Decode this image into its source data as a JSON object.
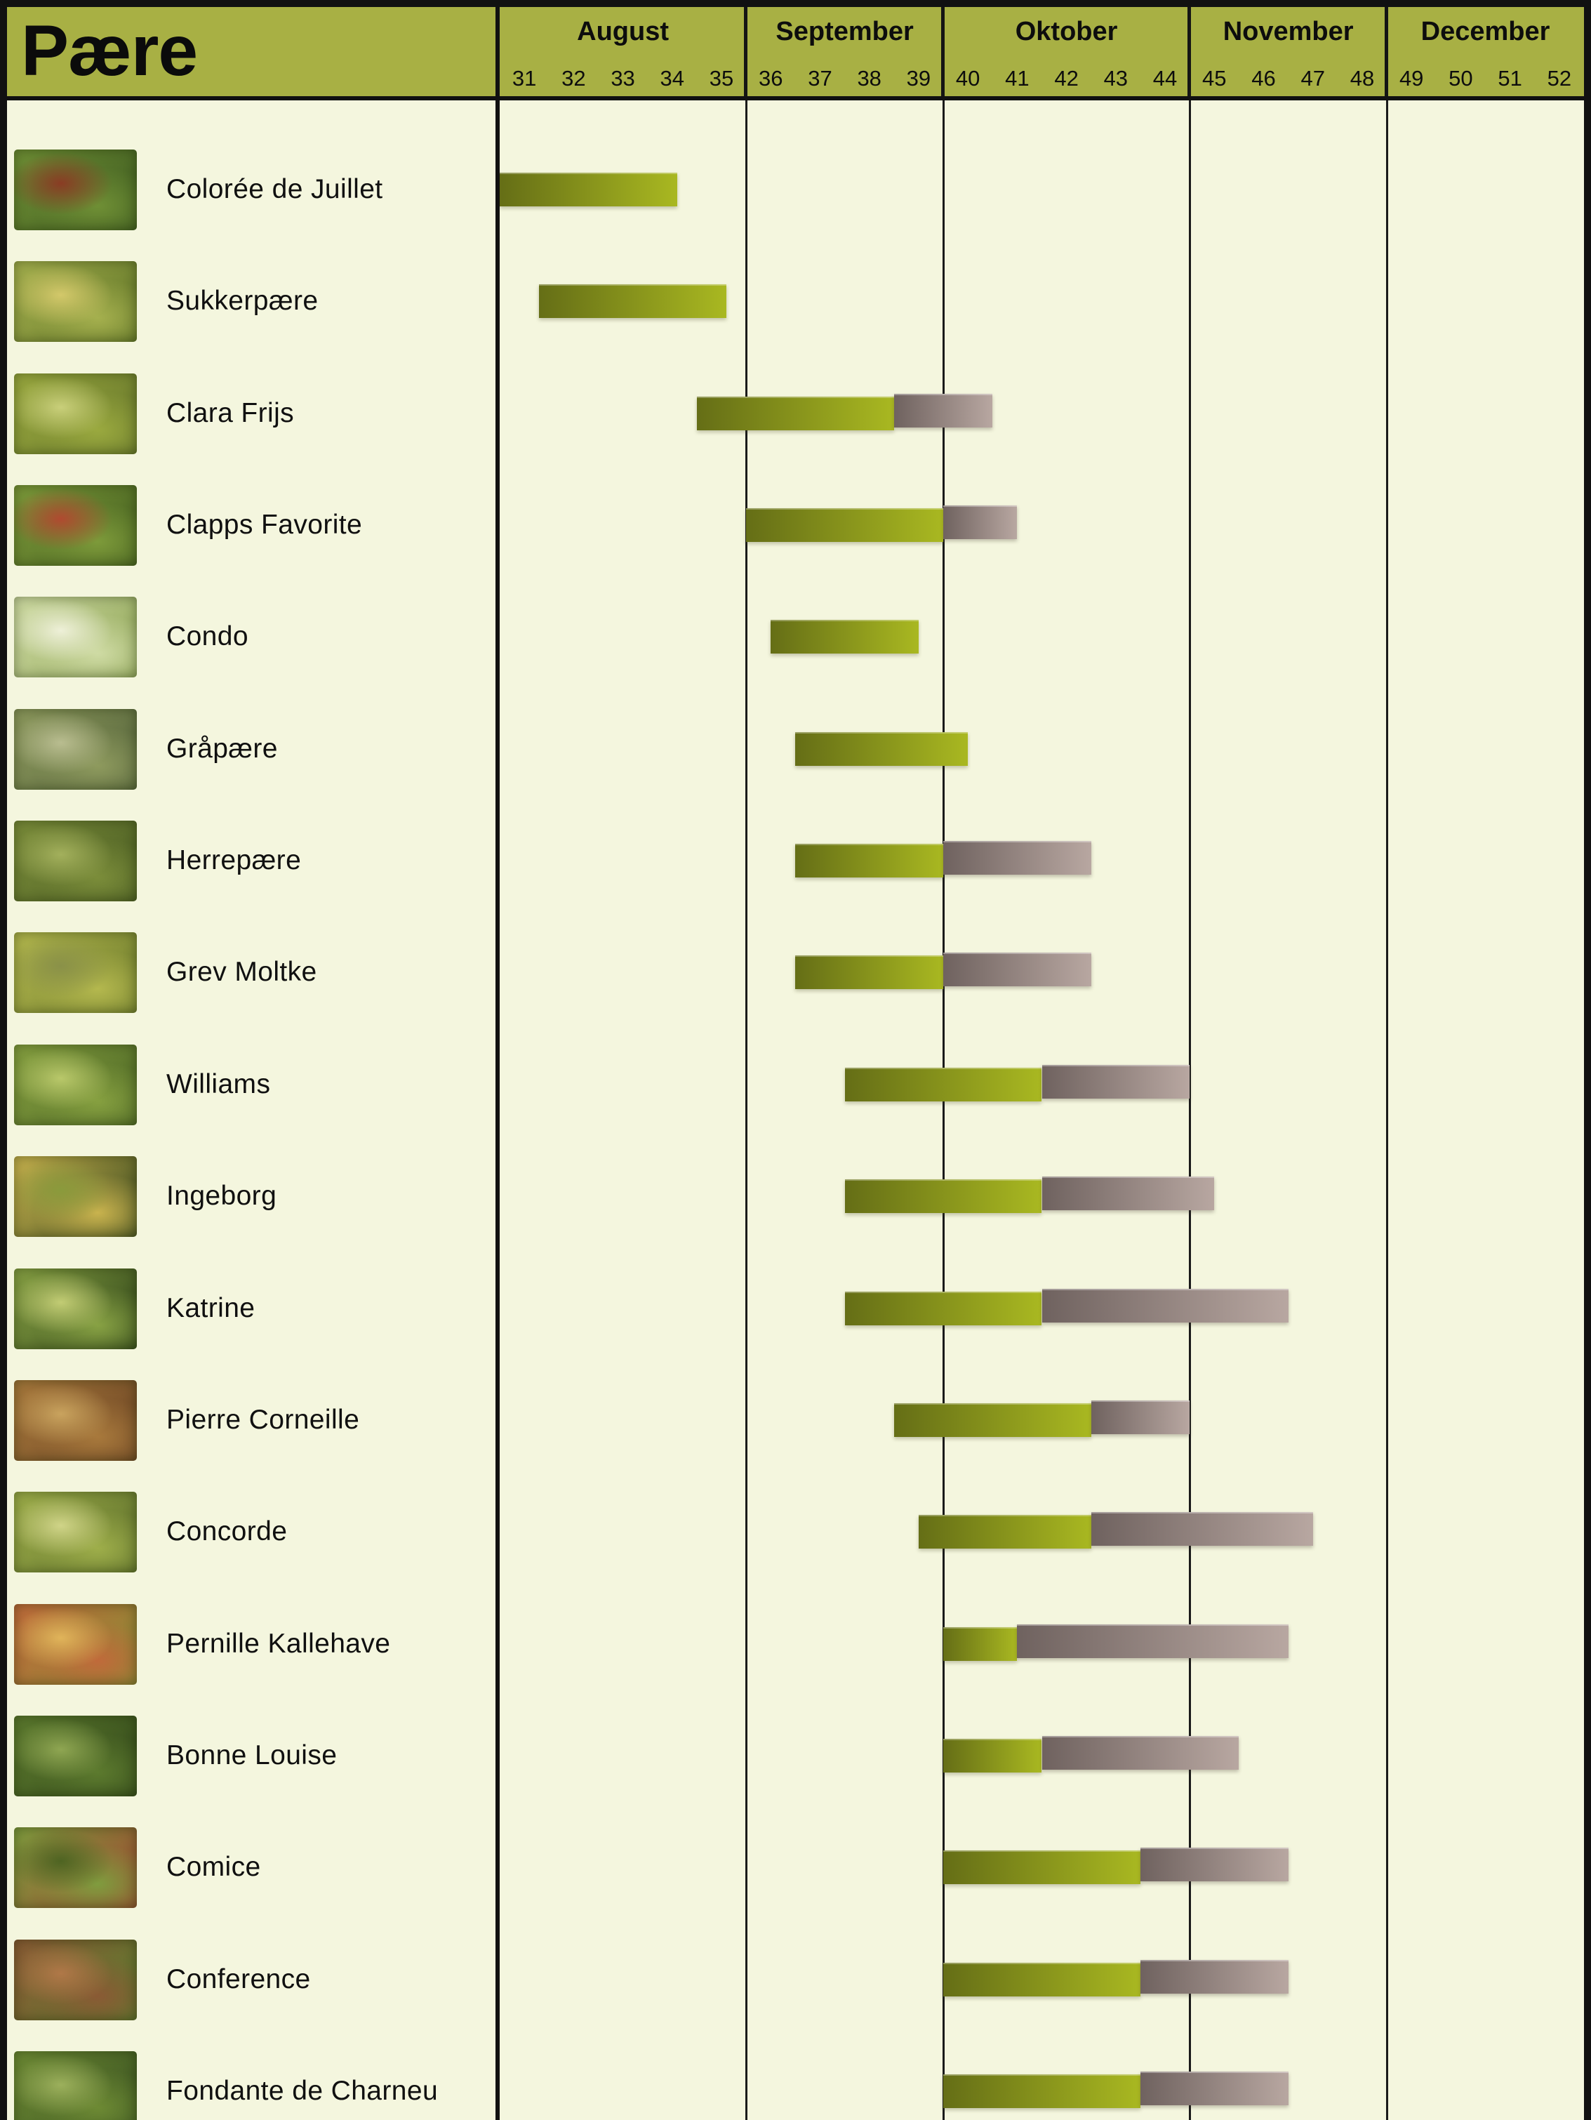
{
  "header": {
    "title": "Pære",
    "months": [
      {
        "label": "August",
        "weeks": [
          31,
          32,
          33,
          34,
          35
        ]
      },
      {
        "label": "September",
        "weeks": [
          36,
          37,
          38,
          39
        ]
      },
      {
        "label": "Oktober",
        "weeks": [
          40,
          41,
          42,
          43,
          44
        ]
      },
      {
        "label": "November",
        "weeks": [
          45,
          46,
          47,
          48
        ]
      },
      {
        "label": "December",
        "weeks": [
          49,
          50,
          51,
          52
        ]
      }
    ]
  },
  "colors": {
    "header_bg": "#a8b044",
    "body_bg": "#f4f6de",
    "border_black": "#111111",
    "harvest_gradient_start": "#656e16",
    "harvest_gradient_end": "#a9b821",
    "storage_gradient_start": "#6f625f",
    "storage_gradient_end": "#b8a7a1"
  },
  "chart_data": {
    "type": "gantt",
    "title": "Pære",
    "x_unit": "week-of-year",
    "x_range": [
      31,
      53
    ],
    "grid_weeks": [
      36,
      40,
      45,
      49
    ],
    "legend": null,
    "series_meaning": {
      "harvest": "green gradient bar",
      "storage": "gray gradient bar"
    },
    "rows": [
      {
        "name": "Colorée de Juillet",
        "harvest": [
          31.0,
          34.6
        ],
        "storage": null,
        "thumb_colors": [
          "#6f8f35",
          "#3f5c20",
          "#8a3c24"
        ]
      },
      {
        "name": "Sukkerpære",
        "harvest": [
          31.8,
          35.6
        ],
        "storage": null,
        "thumb_colors": [
          "#a5b04e",
          "#5f7426",
          "#d3c86a"
        ]
      },
      {
        "name": "Clara Frijs",
        "harvest": [
          35.0,
          39.0
        ],
        "storage": [
          39.0,
          41.0
        ],
        "thumb_colors": [
          "#9aa93f",
          "#66762a",
          "#c9cf7a"
        ]
      },
      {
        "name": "Clapps Favorite",
        "harvest": [
          36.0,
          40.0
        ],
        "storage": [
          40.0,
          41.5
        ],
        "thumb_colors": [
          "#7d9a3a",
          "#45601f",
          "#b04a30"
        ]
      },
      {
        "name": "Condo",
        "harvest": [
          36.5,
          39.5
        ],
        "storage": null,
        "thumb_colors": [
          "#cfdba4",
          "#8fa556",
          "#eef0d8"
        ]
      },
      {
        "name": "Gråpære",
        "harvest": [
          37.0,
          40.5
        ],
        "storage": null,
        "thumb_colors": [
          "#8e9a5e",
          "#55643a",
          "#b9bd90"
        ]
      },
      {
        "name": "Herrepære",
        "harvest": [
          37.0,
          40.0
        ],
        "storage": [
          40.0,
          43.0
        ],
        "thumb_colors": [
          "#7b8d3a",
          "#4a5c22",
          "#a3b05c"
        ]
      },
      {
        "name": "Grev Moltke",
        "harvest": [
          37.0,
          40.0
        ],
        "storage": [
          40.0,
          43.0
        ],
        "thumb_colors": [
          "#b4b84e",
          "#6e7c2c",
          "#8a9148"
        ]
      },
      {
        "name": "Williams",
        "harvest": [
          38.0,
          42.0
        ],
        "storage": [
          42.0,
          45.0
        ],
        "thumb_colors": [
          "#86a040",
          "#4c6624",
          "#b9c86a"
        ]
      },
      {
        "name": "Ingeborg",
        "harvest": [
          38.0,
          42.0
        ],
        "storage": [
          42.0,
          45.5
        ],
        "thumb_colors": [
          "#c9b34e",
          "#3c4a1e",
          "#8a9a3c"
        ]
      },
      {
        "name": "Katrine",
        "harvest": [
          38.0,
          42.0
        ],
        "storage": [
          42.0,
          47.0
        ],
        "thumb_colors": [
          "#88a244",
          "#2f4418",
          "#c2cc74"
        ]
      },
      {
        "name": "Pierre Corneille",
        "harvest": [
          39.0,
          43.0
        ],
        "storage": [
          43.0,
          45.0
        ],
        "thumb_colors": [
          "#a8793c",
          "#6b4423",
          "#c9a35e"
        ]
      },
      {
        "name": "Concorde",
        "harvest": [
          39.5,
          43.0
        ],
        "storage": [
          43.0,
          47.5
        ],
        "thumb_colors": [
          "#9eae4a",
          "#5d6f2a",
          "#d0d488"
        ]
      },
      {
        "name": "Pernille Kallehave",
        "harvest": [
          40.0,
          41.5
        ],
        "storage": [
          41.5,
          47.0
        ],
        "thumb_colors": [
          "#c06a3a",
          "#8a8a34",
          "#e0b45a"
        ]
      },
      {
        "name": "Bonne Louise",
        "harvest": [
          40.0,
          42.0
        ],
        "storage": [
          42.0,
          46.0
        ],
        "thumb_colors": [
          "#5c7a2e",
          "#33491a",
          "#8fa652"
        ]
      },
      {
        "name": "Comice",
        "harvest": [
          40.0,
          44.0
        ],
        "storage": [
          44.0,
          47.0
        ],
        "thumb_colors": [
          "#7f9c3e",
          "#9c4a30",
          "#4e6422"
        ]
      },
      {
        "name": "Conference",
        "harvest": [
          40.0,
          44.0
        ],
        "storage": [
          44.0,
          47.0
        ],
        "thumb_colors": [
          "#8a5a34",
          "#5c7a2e",
          "#b07848"
        ]
      },
      {
        "name": "Fondante de Charneu",
        "harvest": [
          40.0,
          44.0
        ],
        "storage": [
          44.0,
          47.0
        ],
        "thumb_colors": [
          "#6d8a34",
          "#3a5220",
          "#9cb05c"
        ]
      }
    ]
  }
}
